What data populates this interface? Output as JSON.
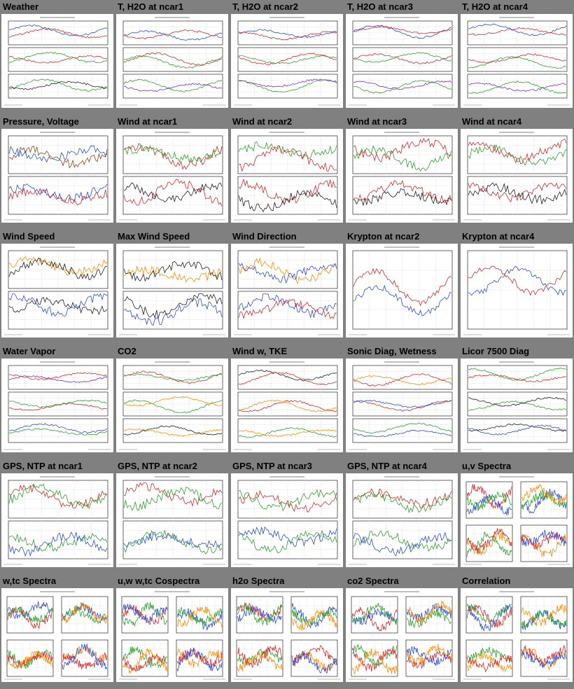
{
  "page": {
    "background": "#808080"
  },
  "cells": [
    {
      "title": "Weather",
      "kind": "multi3",
      "colors": [
        "#2a4bd7",
        "#d62728",
        "#2ca02c",
        "#1f1f1f"
      ]
    },
    {
      "title": "T, H2O at ncar1",
      "kind": "multi3",
      "colors": [
        "#2a4bd7",
        "#d62728",
        "#2ca02c",
        "#7a2ad7"
      ]
    },
    {
      "title": "T, H2O at ncar2",
      "kind": "multi3",
      "colors": [
        "#2a4bd7",
        "#d62728",
        "#2ca02c",
        "#7a2ad7"
      ]
    },
    {
      "title": "T, H2O at ncar3",
      "kind": "multi3",
      "colors": [
        "#2a4bd7",
        "#d62728",
        "#2ca02c",
        "#7a2ad7"
      ]
    },
    {
      "title": "T, H2O at ncar4",
      "kind": "multi3",
      "colors": [
        "#2a4bd7",
        "#d62728",
        "#2ca02c",
        "#7a2ad7"
      ]
    },
    {
      "title": "Pressure, Voltage",
      "kind": "multi2",
      "colors": [
        "#8b4513",
        "#2a4bd7",
        "#d62728",
        "#ff8c00"
      ]
    },
    {
      "title": "Wind at ncar1",
      "kind": "multi2",
      "colors": [
        "#2ca02c",
        "#d62728",
        "#1f1f1f",
        "#ff8c00"
      ]
    },
    {
      "title": "Wind at ncar2",
      "kind": "multi2",
      "colors": [
        "#2ca02c",
        "#d62728",
        "#1f1f1f",
        "#ff8c00"
      ]
    },
    {
      "title": "Wind at ncar3",
      "kind": "multi2",
      "colors": [
        "#2ca02c",
        "#d62728",
        "#1f1f1f",
        "#ff8c00"
      ]
    },
    {
      "title": "Wind at ncar4",
      "kind": "multi2",
      "colors": [
        "#2ca02c",
        "#d62728",
        "#1f1f1f",
        "#ff8c00"
      ]
    },
    {
      "title": "Wind Speed",
      "kind": "multi2",
      "colors": [
        "#ff8c00",
        "#1f1f1f",
        "#2a4bd7",
        "#d62728"
      ]
    },
    {
      "title": "Max Wind Speed",
      "kind": "multi2",
      "colors": [
        "#ff8c00",
        "#1f1f1f",
        "#2a4bd7",
        "#d62728"
      ]
    },
    {
      "title": "Wind Direction",
      "kind": "multi2",
      "colors": [
        "#ff8c00",
        "#2a4bd7",
        "#d62728",
        "#2ca02c"
      ]
    },
    {
      "title": "Krypton at ncar2",
      "kind": "single",
      "colors": [
        "#d62728",
        "#2a4bd7",
        "#2ca02c",
        "#1f1f1f"
      ]
    },
    {
      "title": "Krypton at ncar4",
      "kind": "single",
      "colors": [
        "#d62728",
        "#2a4bd7",
        "#2ca02c",
        "#1f1f1f"
      ]
    },
    {
      "title": "Water Vapor",
      "kind": "multi3",
      "colors": [
        "#7a2ad7",
        "#d62728",
        "#2ca02c",
        "#2a4bd7"
      ]
    },
    {
      "title": "CO2",
      "kind": "multi3",
      "colors": [
        "#d62728",
        "#2ca02c",
        "#ff8c00",
        "#1f1f1f"
      ]
    },
    {
      "title": "Wind w, TKE",
      "kind": "multi3",
      "colors": [
        "#1f1f1f",
        "#d62728",
        "#ff8c00",
        "#2ca02c"
      ]
    },
    {
      "title": "Sonic Diag, Wetness",
      "kind": "multi3",
      "colors": [
        "#ff8c00",
        "#d62728",
        "#2a4bd7",
        "#2ca02c"
      ]
    },
    {
      "title": "Licor 7500 Diag",
      "kind": "multi3",
      "colors": [
        "#d62728",
        "#2ca02c",
        "#1f1f1f",
        "#2a4bd7"
      ]
    },
    {
      "title": "GPS, NTP at ncar1",
      "kind": "multi2",
      "colors": [
        "#d62728",
        "#2ca02c",
        "#2a4bd7",
        "#d62728"
      ]
    },
    {
      "title": "GPS, NTP at ncar2",
      "kind": "multi2",
      "colors": [
        "#d62728",
        "#2ca02c",
        "#2a4bd7",
        "#d62728"
      ]
    },
    {
      "title": "GPS, NTP at ncar3",
      "kind": "multi2",
      "colors": [
        "#d62728",
        "#2ca02c",
        "#2a4bd7",
        "#d62728"
      ]
    },
    {
      "title": "GPS, NTP at ncar4",
      "kind": "multi2",
      "colors": [
        "#d62728",
        "#2ca02c",
        "#2a4bd7",
        "#d62728"
      ]
    },
    {
      "title": "u,v Spectra",
      "kind": "quad",
      "colors": [
        "#d62728",
        "#2a4bd7",
        "#2ca02c",
        "#ff8c00"
      ]
    },
    {
      "title": "w,tc Spectra",
      "kind": "quad",
      "colors": [
        "#d62728",
        "#2a4bd7",
        "#2ca02c",
        "#ff8c00"
      ]
    },
    {
      "title": "u,w w,tc Cospectra",
      "kind": "quad",
      "colors": [
        "#d62728",
        "#2a4bd7",
        "#2ca02c",
        "#ff8c00"
      ]
    },
    {
      "title": "h2o Spectra",
      "kind": "quad",
      "colors": [
        "#d62728",
        "#2a4bd7",
        "#2ca02c",
        "#ff8c00"
      ]
    },
    {
      "title": "co2 Spectra",
      "kind": "quad",
      "colors": [
        "#d62728",
        "#2a4bd7",
        "#2ca02c",
        "#ff8c00"
      ]
    },
    {
      "title": "Correlation",
      "kind": "quad",
      "colors": [
        "#d62728",
        "#2a4bd7",
        "#2ca02c",
        "#ff8c00"
      ]
    }
  ]
}
